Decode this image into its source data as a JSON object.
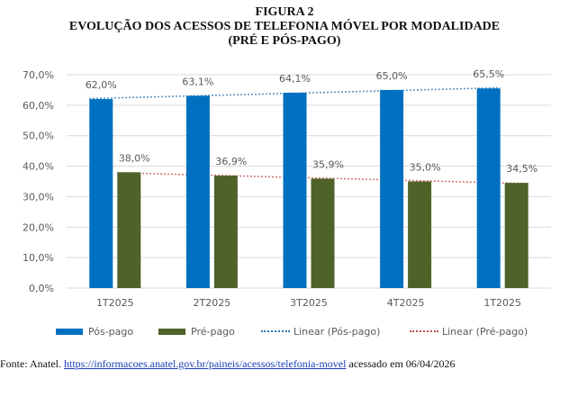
{
  "figure": {
    "number_label": "FIGURA 2",
    "title_line1": "EVOLUÇÃO DOS ACESSOS DE TELEFONIA MÓVEL POR MODALIDADE",
    "title_line2": "(PRÉ E PÓS-PAGO)"
  },
  "chart_data": {
    "type": "bar",
    "title": "EVOLUÇÃO DOS ACESSOS DE TELEFONIA MÓVEL POR MODALIDADE (PRÉ E PÓS-PAGO)",
    "xlabel": "",
    "ylabel": "",
    "categories": [
      "1T2025",
      "2T2025",
      "3T2025",
      "4T2025",
      "1T2025"
    ],
    "series": [
      {
        "name": "Pós-pago",
        "color": "#0070C0",
        "values": [
          62.0,
          63.1,
          64.1,
          65.0,
          65.5
        ],
        "labels": [
          "62,0%",
          "63,1%",
          "64,1%",
          "65,0%",
          "65,5%"
        ]
      },
      {
        "name": "Pré-pago",
        "color": "#4F6228",
        "values": [
          38.0,
          36.9,
          35.9,
          35.0,
          34.5
        ],
        "labels": [
          "38,0%",
          "36,9%",
          "35,9%",
          "35,0%",
          "34,5%"
        ]
      }
    ],
    "trendlines": [
      {
        "name": "Linear (Pós-pago)",
        "series": "Pós-pago",
        "color": "#2E75B6",
        "style": "dotted"
      },
      {
        "name": "Linear (Pré-pago)",
        "series": "Pré-pago",
        "color": "#C0504D",
        "style": "dotted"
      }
    ],
    "ylim": [
      0,
      70
    ],
    "yticks": [
      0,
      10,
      20,
      30,
      40,
      50,
      60,
      70
    ],
    "ytick_labels": [
      "0,0%",
      "10,0%",
      "20,0%",
      "30,0%",
      "40,0%",
      "50,0%",
      "60,0%",
      "70,0%"
    ],
    "grid": true,
    "legend_position": "bottom"
  },
  "legend": {
    "items": [
      "Pós-pago",
      "Pré-pago",
      "Linear (Pós-pago)",
      "Linear (Pré-pago)"
    ]
  },
  "source": {
    "prefix": "Fonte:  Anatel. ",
    "link_text": " https://informacoes.anatel.gov.br/paineis/acessos/telefonia-movel",
    "suffix": " acessado em 06/04/2026"
  }
}
